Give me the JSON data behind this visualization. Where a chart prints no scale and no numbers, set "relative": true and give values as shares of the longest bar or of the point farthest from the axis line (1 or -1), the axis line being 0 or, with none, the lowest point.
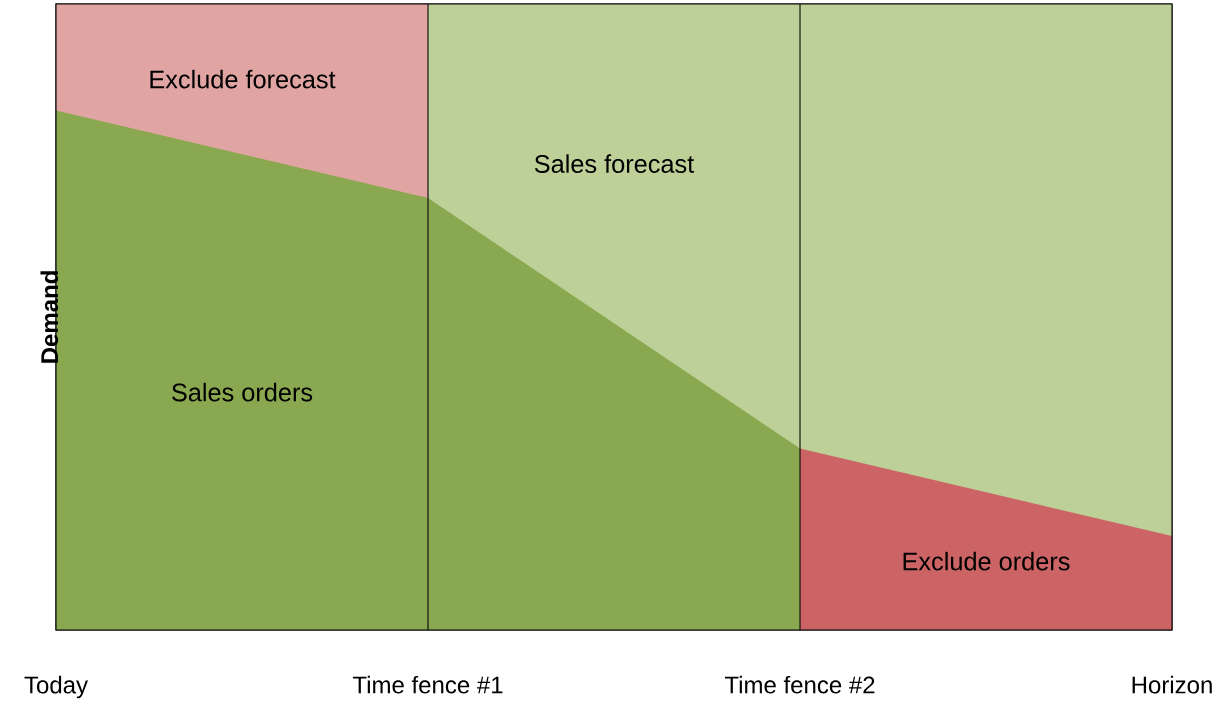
{
  "chart_data": {
    "type": "area",
    "relative": true,
    "ylabel": "Demand",
    "xlim": [
      0,
      3
    ],
    "xticks": [
      {
        "value": 0,
        "label": "Today"
      },
      {
        "value": 1,
        "label": "Time fence #1"
      },
      {
        "value": 2,
        "label": "Time fence #2"
      },
      {
        "value": 3,
        "label": "Horizon"
      }
    ],
    "series": [
      {
        "name": "Exclude forecast",
        "color": "#e0a5a3",
        "x": [
          0,
          1
        ],
        "values": [
          1,
          1
        ]
      },
      {
        "name": "Sales forecast",
        "color": "#bcd097",
        "x": [
          1,
          2,
          3
        ],
        "values": [
          1,
          1,
          1
        ]
      },
      {
        "name": "Sales orders",
        "color": "#8aa84f",
        "x": [
          0,
          1,
          2
        ],
        "values": [
          0.83,
          0.69,
          0.29
        ]
      },
      {
        "name": "Exclude orders",
        "color": "#cc6466",
        "x": [
          2,
          3
        ],
        "values": [
          0.29,
          0.15
        ]
      }
    ],
    "ref_lines": [
      {
        "axis": "x",
        "value": 1,
        "color": "#000000"
      },
      {
        "axis": "x",
        "value": 2,
        "color": "#000000"
      }
    ]
  }
}
